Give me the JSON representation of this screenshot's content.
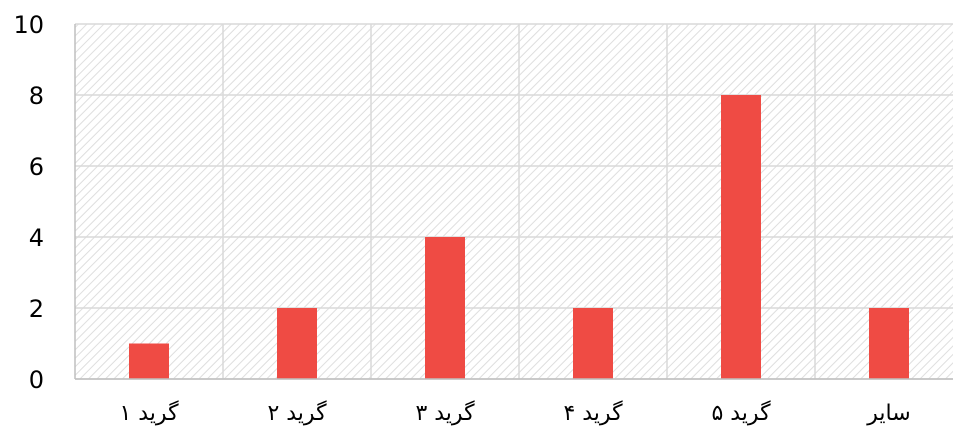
{
  "chart_data": {
    "type": "bar",
    "categories": [
      "گرید ۱",
      "گرید ۲",
      "گرید ۳",
      "گرید ۴",
      "گرید ۵",
      "سایر"
    ],
    "values": [
      1,
      2,
      4,
      2,
      8,
      2
    ],
    "title": "",
    "xlabel": "",
    "ylabel": "",
    "ylim": [
      0,
      10
    ],
    "y_ticks": [
      "0",
      "2",
      "4",
      "6",
      "8",
      "10"
    ],
    "grid": true,
    "legend": "none",
    "colors": {
      "bar": "#ef4b44",
      "grid": "#d9d9d9",
      "axis": "#bfbfbf",
      "hatch": "#dedede"
    }
  }
}
